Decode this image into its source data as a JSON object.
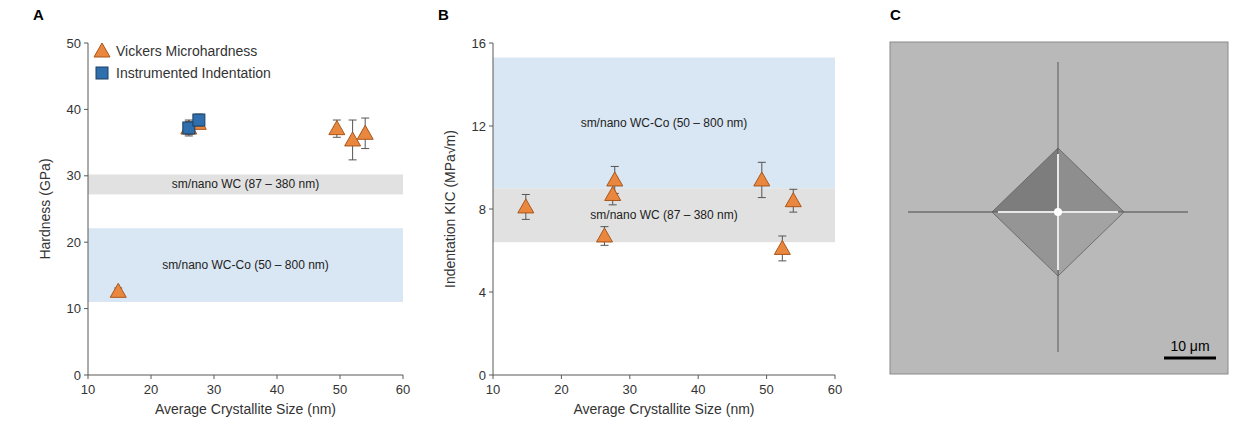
{
  "chart_data": [
    {
      "type": "scatter",
      "title": "A",
      "x_label": "Average Crystallite Size (nm)",
      "y_label": "Hardness (GPa)",
      "xlim": [
        10,
        60
      ],
      "xticks": [
        10,
        20,
        30,
        40,
        50,
        60
      ],
      "ylim": [
        0,
        50
      ],
      "yticks": [
        0,
        10,
        20,
        30,
        40,
        50
      ],
      "legend": "upper left",
      "series": [
        {
          "name": "Vickers Microhardness",
          "color": "#e9873f",
          "marker": "triangle",
          "x": [
            14.8,
            26.0,
            27.5,
            49.5,
            52.0,
            54.0
          ],
          "values": [
            12.6,
            37.2,
            37.9,
            37.1,
            35.4,
            36.4
          ],
          "errors": [
            0.5,
            1.0,
            0.8,
            1.3,
            3.0,
            2.3
          ]
        },
        {
          "name": "Instrumented Indentation",
          "color": "#2f6fad",
          "marker": "square",
          "x": [
            26.0,
            27.6
          ],
          "values": [
            37.2,
            38.4
          ],
          "errors": [
            1.2,
            0.9
          ]
        }
      ],
      "bands": [
        {
          "label": "sm/nano WC (87 – 380 nm)",
          "range": [
            27.2,
            30.2
          ],
          "color": "#e1e1e1"
        },
        {
          "label": "sm/nano WC-Co (50 – 800 nm)",
          "range": [
            11.0,
            22.1
          ],
          "color": "#d9e6f3"
        }
      ]
    },
    {
      "type": "scatter",
      "title": "B",
      "x_label": "Average Crystallite Size (nm)",
      "y_label": "Indentation KIC (MPa√m)",
      "xlim": [
        10,
        60
      ],
      "xticks": [
        10,
        20,
        30,
        40,
        50,
        60
      ],
      "ylim": [
        0,
        16
      ],
      "yticks": [
        0,
        4,
        8,
        12,
        16
      ],
      "series": [
        {
          "color": "#e9873f",
          "marker": "triangle",
          "x": [
            14.8,
            26.3,
            27.5,
            27.8,
            49.3,
            52.3,
            53.9
          ],
          "values": [
            8.1,
            6.7,
            8.7,
            9.4,
            9.4,
            6.1,
            8.4
          ],
          "errors": [
            0.6,
            0.45,
            0.5,
            0.65,
            0.85,
            0.6,
            0.55
          ]
        }
      ],
      "bands": [
        {
          "label": "sm/nano WC-Co (50 – 800 nm)",
          "range": [
            9.0,
            15.3
          ],
          "color": "#d9e6f3"
        },
        {
          "label": "sm/nano WC (87 – 380 nm)",
          "range": [
            6.4,
            9.0
          ],
          "color": "#e1e1e1"
        }
      ]
    }
  ],
  "panel_c": {
    "title": "C",
    "scale_bar": {
      "label": "10 μm",
      "length": 10
    }
  }
}
